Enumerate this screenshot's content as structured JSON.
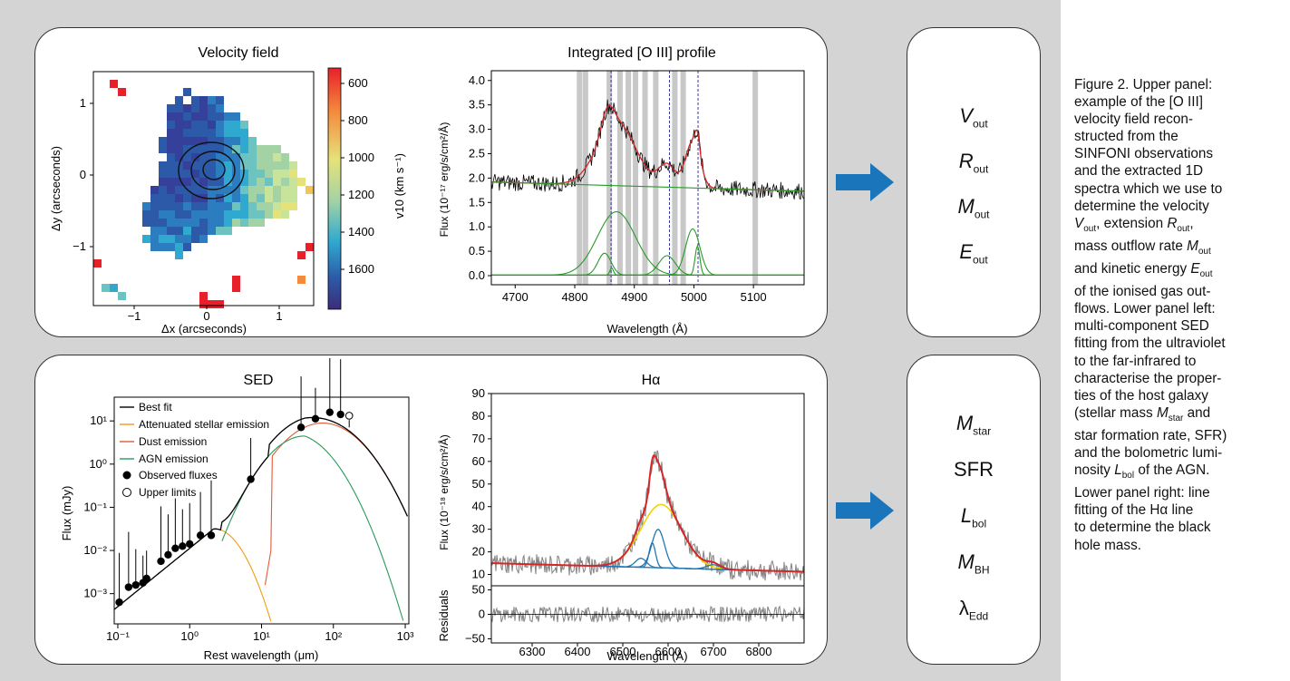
{
  "colors": {
    "arrow": "#1a75bb",
    "gray_bg": "#d4d4d4",
    "red_fit": "#d62728",
    "green_comp": "#2a9a2a",
    "blue_comp": "#1f77b4",
    "yellow_comp": "#f2d300",
    "orange_stellar": "#f39c12"
  },
  "velocity": {
    "title": "Velocity field",
    "xlabel": "Δx (arcseconds)",
    "ylabel": "Δy (arcseconds)",
    "xticks": [
      "−1",
      "0",
      "1"
    ],
    "yticks": [
      "1",
      "0",
      "−1"
    ],
    "cbar_label": "v10 (km s⁻¹)",
    "cbar_ticks": [
      "600",
      "800",
      "1000",
      "1200",
      "1400",
      "1600"
    ]
  },
  "oiii": {
    "title": "Integrated [O III] profile",
    "xlabel": "Wavelength (Å)",
    "ylabel": "Flux (10⁻¹⁷ erg/s/cm²/Å)",
    "xticks": [
      "4700",
      "4800",
      "4900",
      "5000",
      "5100"
    ],
    "yticks": [
      "0.0",
      "0.5",
      "1.0",
      "1.5",
      "2.0",
      "2.5",
      "3.0",
      "3.5",
      "4.0"
    ]
  },
  "sed": {
    "title": "SED",
    "xlabel": "Rest wavelength (μm)",
    "ylabel": "Flux (mJy)",
    "xticks": [
      "10⁻¹",
      "10⁰",
      "10¹",
      "10²",
      "10³"
    ],
    "yticks": [
      "10¹",
      "10⁰",
      "10⁻¹",
      "10⁻²",
      "10⁻³"
    ],
    "legend": [
      "Best fit",
      "Attenuated stellar emission",
      "Dust emission",
      "AGN emission",
      "Observed fluxes",
      "Upper limits"
    ]
  },
  "halpha": {
    "title": "Hα",
    "xlabel": "Wavelength (Å)",
    "ylabel": "Flux (10⁻¹⁸ erg/s/cm²/Å)",
    "ylabel2": "Residuals",
    "xticks": [
      "6300",
      "6400",
      "6500",
      "6600",
      "6700",
      "6800"
    ],
    "yticks": [
      "90",
      "80",
      "70",
      "60",
      "50",
      "40",
      "30",
      "20",
      "10"
    ],
    "res_yticks": [
      "50",
      "0",
      "−50"
    ]
  },
  "results_top": [
    {
      "sym": "V",
      "sub": "out"
    },
    {
      "sym": "R",
      "sub": "out"
    },
    {
      "sym": "M",
      "sub": "out"
    },
    {
      "sym": "E",
      "sub": "out"
    }
  ],
  "results_bottom": [
    {
      "sym": "M",
      "sub": "star",
      "italic": true
    },
    {
      "sym": "SFR",
      "sub": "",
      "italic": false
    },
    {
      "sym": "L",
      "sub": "bol",
      "italic": true
    },
    {
      "sym": "M",
      "sub": "BH",
      "italic": true
    },
    {
      "sym": "λ",
      "sub": "Edd",
      "italic": false
    }
  ],
  "caption": {
    "lines": [
      "Figure 2. Upper panel:",
      "example of the [O III]",
      "velocity field recon-",
      "structed from the",
      "SINFONI observations",
      "and the extracted 1D",
      "spectra which we use to",
      "determine the velocity"
    ],
    "l_v": "V",
    "l_v_sub": "out",
    "l_ext": ", extension ",
    "l_r": "R",
    "l_r_sub": "out",
    "l_mass": "mass outflow rate ",
    "l_m": "M",
    "l_m_sub": "out",
    "l_kin": "and kinetic energy ",
    "l_e": "E",
    "l_e_sub": "out",
    "lines2": [
      "of the ionised gas out-",
      "flows. Lower panel left:",
      "multi-component SED",
      "fitting from the ultraviolet",
      "to the far-infrared to",
      "characterise the proper-",
      "ties of the host galaxy"
    ],
    "l_stellar": "(stellar mass ",
    "l_ms": "M",
    "l_ms_sub": "star",
    "l_and": " and",
    "lines3": [
      "star formation rate, SFR)",
      "and the bolometric lumi-"
    ],
    "l_nos": "nosity ",
    "l_lb": "L",
    "l_lb_sub": "bol",
    "l_agn": " of the AGN.",
    "lines4": [
      "Lower panel right: line",
      "fitting of the Hα line",
      "to determine the black",
      "hole mass."
    ]
  }
}
